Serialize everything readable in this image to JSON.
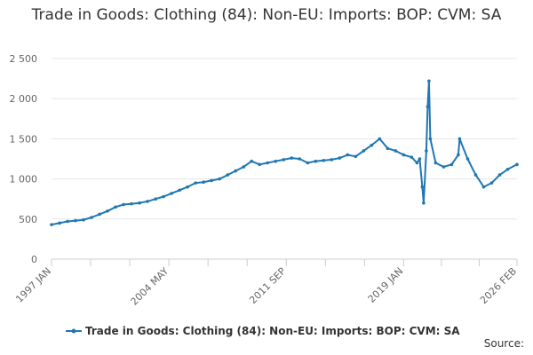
{
  "chart_data": {
    "type": "line",
    "title": "Trade in Goods: Clothing (84): Non-EU: Imports: BOP: CVM: SA",
    "xlabel": "",
    "ylabel": "",
    "ylim": [
      0,
      2500
    ],
    "yticks": [
      0,
      500,
      1000,
      1500,
      2000,
      2500
    ],
    "ytick_labels": [
      "0",
      "500",
      "1 000",
      "1 500",
      "2 000",
      "2 500"
    ],
    "xtick_labels": [
      "1997 JAN",
      "2004 MAY",
      "2011 SEP",
      "2019 JAN",
      "2026 FEB"
    ],
    "xtick_dates": [
      "1997-01",
      "2004-05",
      "2011-09",
      "2019-01",
      "2026-02"
    ],
    "grid": "horizontal",
    "legend_position": "bottom",
    "series": [
      {
        "name": "Trade in Goods: Clothing (84): Non-EU: Imports: BOP: CVM: SA",
        "color": "#1f77b4",
        "x": [
          "1997-01",
          "1997-07",
          "1998-01",
          "1998-07",
          "1999-01",
          "1999-07",
          "2000-01",
          "2000-07",
          "2001-01",
          "2001-07",
          "2002-01",
          "2002-07",
          "2003-01",
          "2003-07",
          "2004-01",
          "2004-07",
          "2005-01",
          "2005-07",
          "2006-01",
          "2006-07",
          "2007-01",
          "2007-07",
          "2008-01",
          "2008-07",
          "2009-01",
          "2009-07",
          "2010-01",
          "2010-07",
          "2011-01",
          "2011-07",
          "2012-01",
          "2012-07",
          "2013-01",
          "2013-07",
          "2014-01",
          "2014-07",
          "2015-01",
          "2015-07",
          "2016-01",
          "2016-07",
          "2017-01",
          "2017-07",
          "2018-01",
          "2018-07",
          "2019-01",
          "2019-07",
          "2019-11",
          "2020-01",
          "2020-03",
          "2020-04",
          "2020-06",
          "2020-07",
          "2020-08",
          "2020-09",
          "2021-01",
          "2021-07",
          "2022-01",
          "2022-06",
          "2022-07",
          "2023-01",
          "2023-07",
          "2024-01",
          "2024-07",
          "2025-01",
          "2025-07",
          "2026-02"
        ],
        "values": [
          430,
          450,
          470,
          480,
          490,
          520,
          560,
          600,
          650,
          680,
          690,
          700,
          720,
          750,
          780,
          820,
          860,
          900,
          950,
          960,
          980,
          1000,
          1050,
          1100,
          1150,
          1220,
          1180,
          1200,
          1220,
          1240,
          1260,
          1250,
          1200,
          1220,
          1230,
          1240,
          1260,
          1300,
          1280,
          1350,
          1420,
          1500,
          1380,
          1350,
          1300,
          1270,
          1200,
          1250,
          900,
          700,
          1350,
          1900,
          2220,
          1500,
          1200,
          1150,
          1180,
          1300,
          1500,
          1250,
          1050,
          900,
          950,
          1050,
          1120,
          1180
        ]
      }
    ]
  }
}
